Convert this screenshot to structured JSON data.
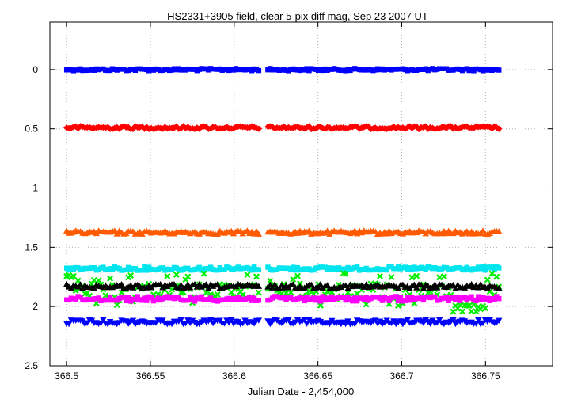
{
  "chart_data": {
    "type": "scatter",
    "title": "HS2331+3905 field, clear 5-pix diff mag, Sep 23 2007 UT",
    "xlabel": "Julian Date - 2,454,000",
    "ylabel": "",
    "xlim": [
      366.49,
      366.79
    ],
    "ylim": [
      2.5,
      -0.4
    ],
    "y_inverted": true,
    "grid": true,
    "x_ticks": [
      "366.5",
      "366.55",
      "366.6",
      "366.65",
      "366.7",
      "366.75"
    ],
    "x_tick_values": [
      366.5,
      366.55,
      366.6,
      366.65,
      366.7,
      366.75
    ],
    "y_ticks": [
      "0",
      "0.5",
      "1",
      "1.5",
      "2",
      "2.5"
    ],
    "y_tick_values": [
      0,
      0.5,
      1,
      1.5,
      2,
      2.5
    ],
    "gap": [
      366.615,
      366.619
    ],
    "x_range": [
      366.5,
      366.758
    ],
    "series": [
      {
        "color": "#0000ff",
        "marker": "square",
        "mag": 0.0,
        "scatter": 0.01
      },
      {
        "color": "#ff0000",
        "marker": "diamond",
        "mag": 0.49,
        "scatter": 0.012
      },
      {
        "color": "#ff5a00",
        "marker": "triangle-up",
        "mag": 1.375,
        "scatter": 0.015
      },
      {
        "color": "#00e5ee",
        "marker": "square",
        "mag": 1.68,
        "scatter": 0.015
      },
      {
        "color": "#00ee00",
        "marker": "x",
        "mag": 1.865,
        "scatter": 0.06
      },
      {
        "color": "#000000",
        "marker": "triangle-up",
        "mag": 1.83,
        "scatter": 0.018
      },
      {
        "color": "#ff00ff",
        "marker": "square",
        "mag": 1.935,
        "scatter": 0.02
      },
      {
        "color": "#0000ff",
        "marker": "triangle-down",
        "mag": 2.13,
        "scatter": 0.018
      }
    ]
  }
}
